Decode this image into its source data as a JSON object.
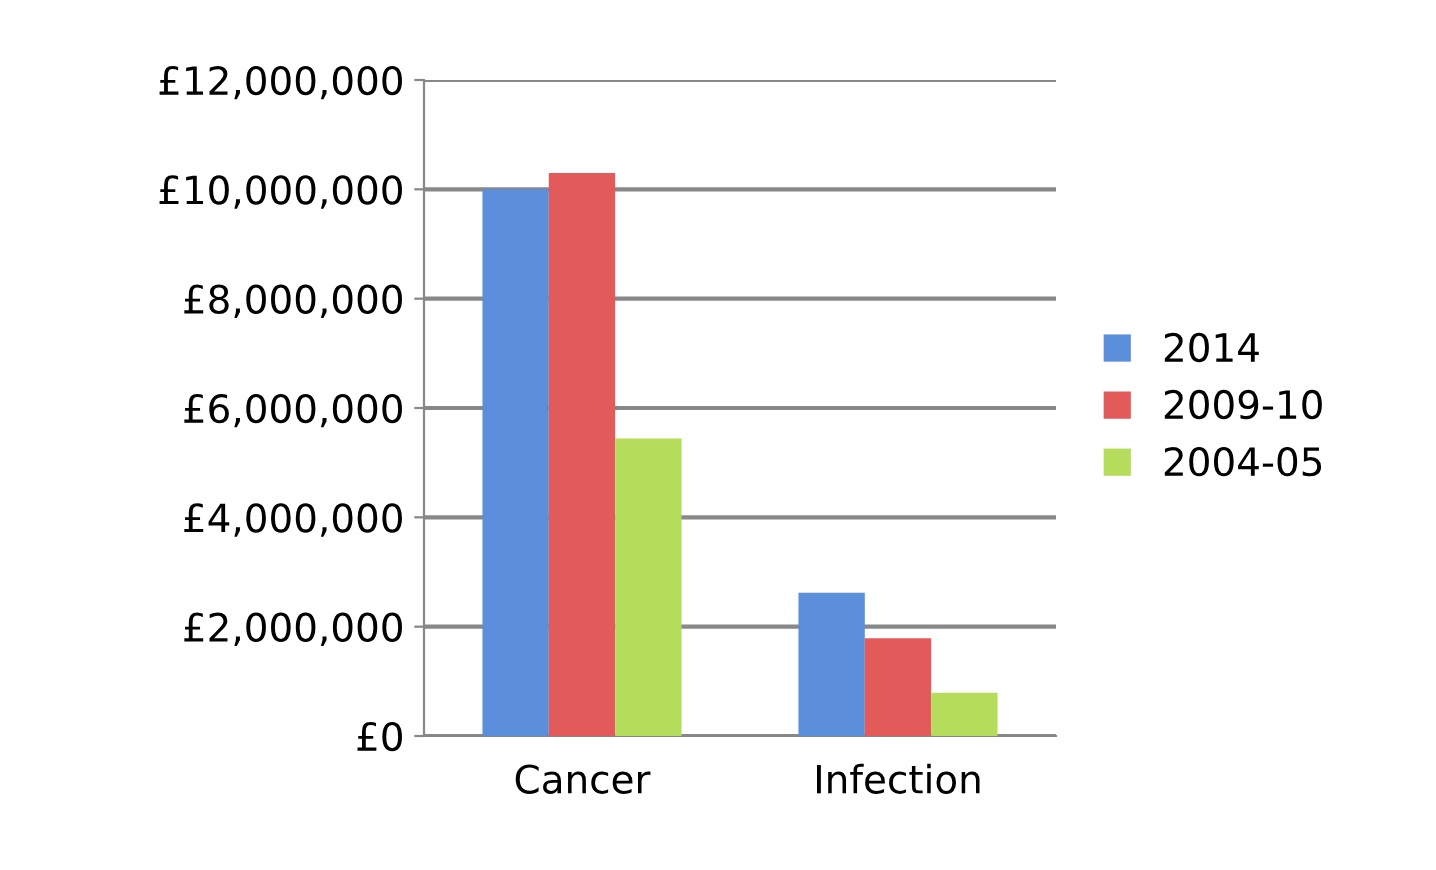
{
  "chart_data": {
    "type": "bar",
    "categories": [
      "Cancer",
      "Infection"
    ],
    "series": [
      {
        "name": "2014",
        "color": "#5b8fdc",
        "values": [
          10000000,
          2620000
        ]
      },
      {
        "name": "2009-10",
        "color": "#e25a5a",
        "values": [
          10300000,
          1790000
        ]
      },
      {
        "name": "2004-05",
        "color": "#b6dc5c",
        "values": [
          5440000,
          790000
        ]
      }
    ],
    "ylim": [
      0,
      12000000
    ],
    "yticks": [
      {
        "value": 0,
        "label": "£0"
      },
      {
        "value": 2000000,
        "label": "£2,000,000"
      },
      {
        "value": 4000000,
        "label": "£4,000,000"
      },
      {
        "value": 6000000,
        "label": "£6,000,000"
      },
      {
        "value": 8000000,
        "label": "£8,000,000"
      },
      {
        "value": 10000000,
        "label": "£10,000,000"
      },
      {
        "value": 12000000,
        "label": "£12,000,000"
      }
    ],
    "grid": "y",
    "legend": "right"
  }
}
